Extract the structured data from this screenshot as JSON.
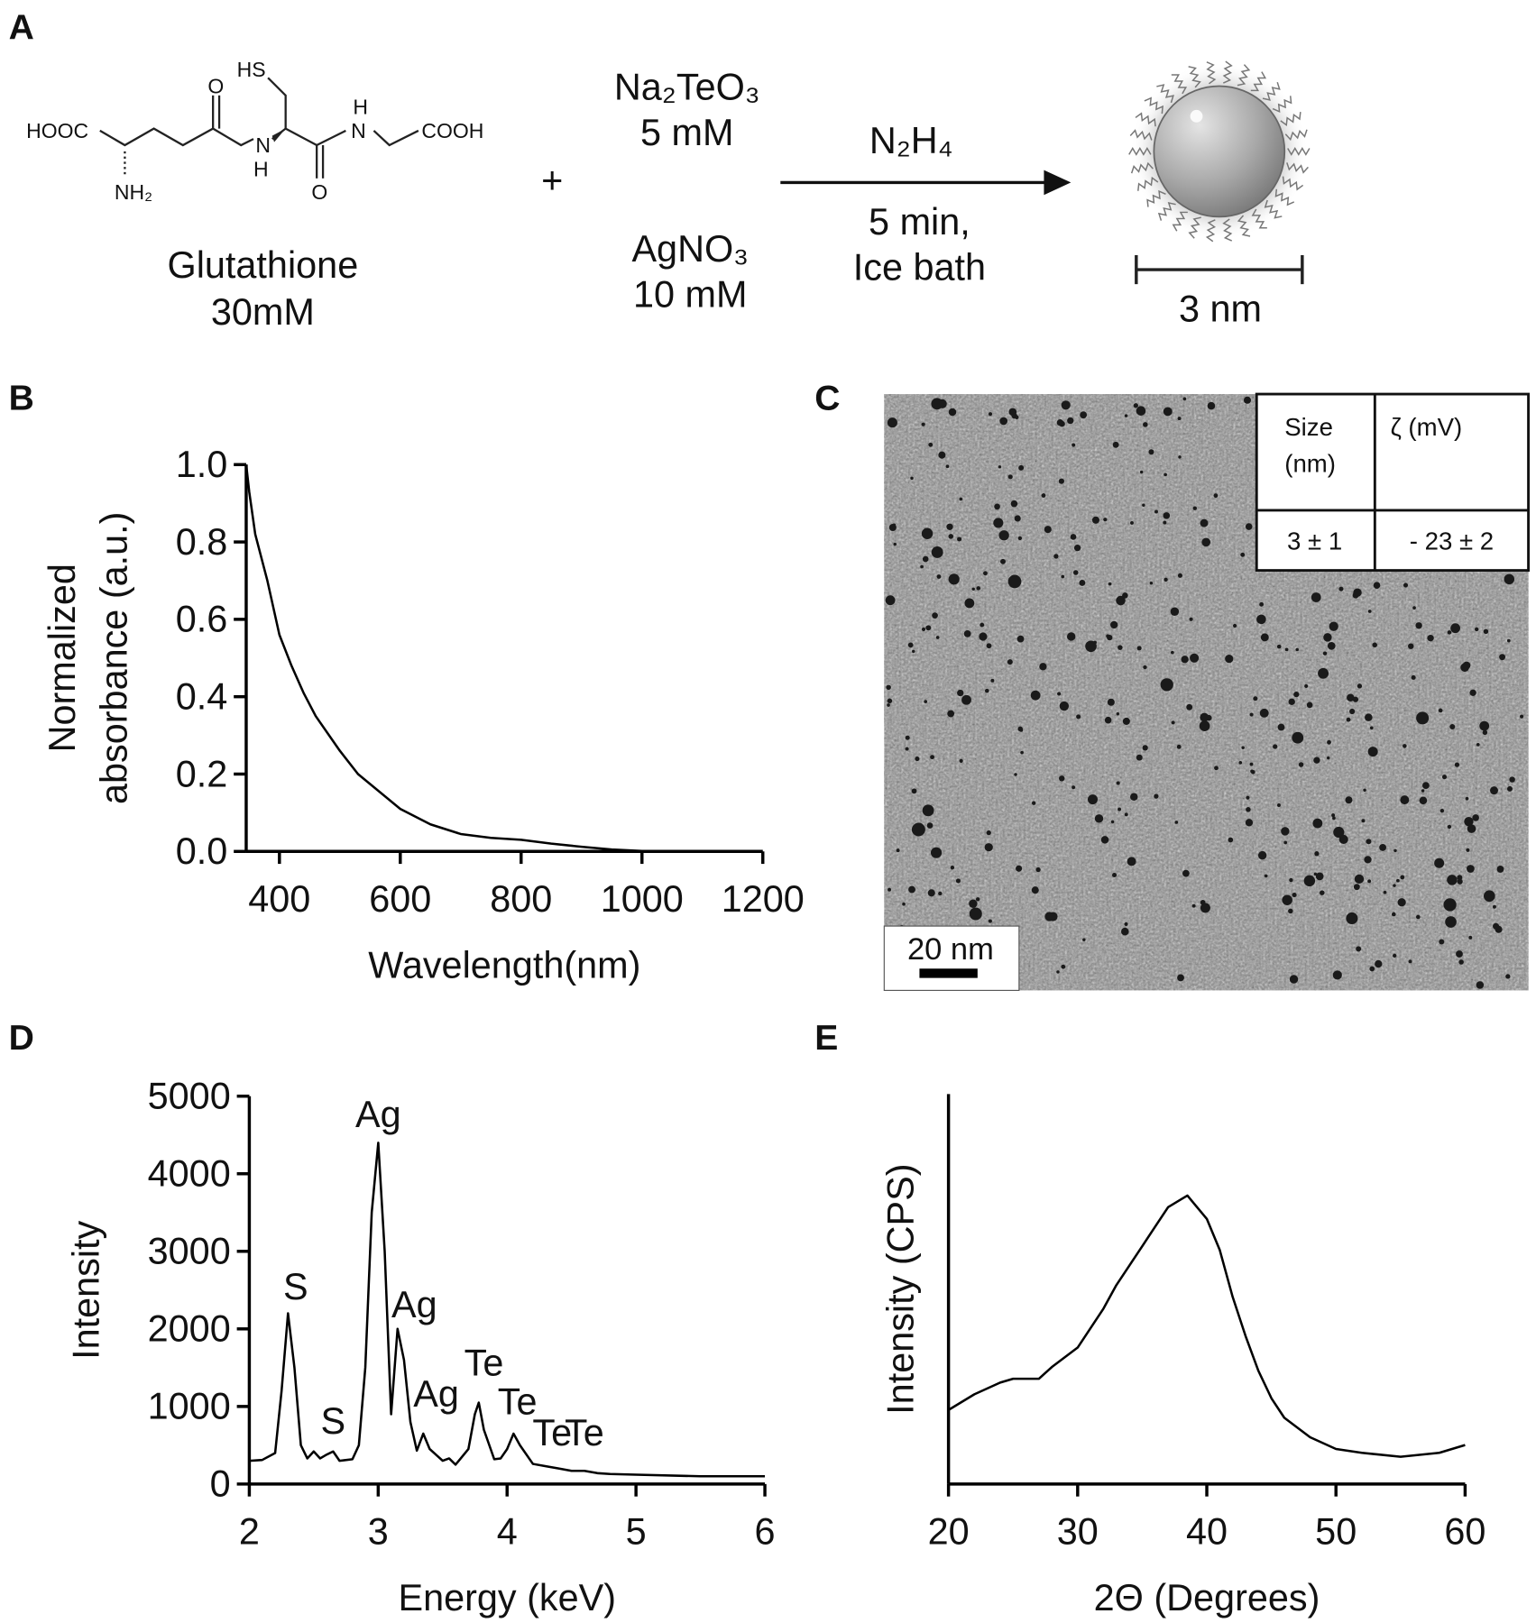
{
  "panel_labels": [
    "A",
    "B",
    "C",
    "D",
    "E"
  ],
  "panel_a": {
    "structure_labels": [
      "HOOC",
      "NH₂",
      "O",
      "N",
      "H",
      "HS",
      "O",
      "H",
      "N",
      "COOH"
    ],
    "reactant_name": "Glutathione",
    "reactant_conc": "30mM",
    "plus": "+",
    "salt1": "Na₂TeO₃",
    "salt1_conc": "5 mM",
    "salt2": "AgNO₃",
    "salt2_conc": "10 mM",
    "reagent": "N₂H₄",
    "conditions": [
      "5 min,",
      "Ice bath"
    ],
    "scale": "3 nm"
  },
  "panel_c": {
    "scale_bar": "20 nm",
    "table": {
      "header": [
        [
          "Size",
          "(nm)"
        ],
        [
          "ζ  (mV)"
        ]
      ],
      "rows": [
        [
          "3 ± 1",
          "- 23 ± 2"
        ]
      ]
    }
  },
  "chart_data": [
    {
      "type": "line",
      "xlabel": "Wavelength(nm)",
      "ylabel": [
        "Normalized",
        "absorbance (a.u.)"
      ],
      "color": "#000000",
      "x": [
        345,
        350,
        360,
        380,
        400,
        420,
        440,
        460,
        500,
        530,
        600,
        650,
        700,
        750,
        800,
        850,
        900,
        950,
        1000
      ],
      "values": [
        1.0,
        0.93,
        0.82,
        0.7,
        0.56,
        0.48,
        0.41,
        0.35,
        0.26,
        0.2,
        0.11,
        0.07,
        0.045,
        0.035,
        0.03,
        0.02,
        0.012,
        0.005,
        0.001
      ],
      "xlim": [
        345,
        1200
      ],
      "xticks": [
        400,
        600,
        800,
        1000,
        1200
      ],
      "ylim": [
        0,
        1
      ],
      "yticks": [
        {
          "value": 0,
          "label": "0.0"
        },
        0.2,
        0.4,
        0.6,
        0.8,
        {
          "value": 1,
          "label": "1.0"
        }
      ]
    },
    {
      "type": "line",
      "xlabel": "Energy (keV)",
      "ylabel": [
        "Intensity"
      ],
      "color": "#000000",
      "x": [
        2.0,
        2.1,
        2.2,
        2.25,
        2.3,
        2.35,
        2.4,
        2.45,
        2.5,
        2.55,
        2.6,
        2.65,
        2.7,
        2.8,
        2.85,
        2.9,
        2.95,
        3.0,
        3.05,
        3.1,
        3.15,
        3.2,
        3.25,
        3.3,
        3.35,
        3.4,
        3.5,
        3.55,
        3.6,
        3.7,
        3.75,
        3.78,
        3.82,
        3.9,
        3.95,
        4.0,
        4.05,
        4.1,
        4.2,
        4.3,
        4.4,
        4.5,
        4.6,
        4.7,
        4.8,
        5.0,
        5.5,
        6.0
      ],
      "values": [
        300,
        310,
        400,
        1200,
        2200,
        1500,
        500,
        330,
        420,
        330,
        380,
        420,
        300,
        320,
        500,
        1500,
        3500,
        4400,
        3000,
        900,
        2000,
        1600,
        800,
        430,
        650,
        450,
        300,
        330,
        250,
        450,
        900,
        1050,
        700,
        320,
        330,
        450,
        650,
        500,
        260,
        230,
        200,
        170,
        170,
        140,
        130,
        120,
        100,
        100
      ],
      "annotations": [
        "S",
        "S",
        "Ag",
        "Ag",
        "Ag",
        "Te",
        "Te",
        "Te",
        "Te"
      ],
      "xlim": [
        2,
        6
      ],
      "xticks": [
        2,
        3,
        4,
        5,
        6
      ],
      "ylim": [
        0,
        5000
      ],
      "yticks": [
        0,
        1000,
        2000,
        3000,
        4000,
        5000
      ]
    },
    {
      "type": "line",
      "xlabel": "2Θ (Degrees)",
      "ylabel": [
        "Intensity (CPS)"
      ],
      "color": "#000000",
      "x": [
        20,
        22,
        24,
        25,
        27,
        28,
        30,
        32,
        33,
        34,
        35,
        36,
        37,
        38,
        38.5,
        39,
        40,
        41,
        42,
        43,
        44,
        45,
        46,
        48,
        50,
        52,
        55,
        58,
        60
      ],
      "values": [
        19,
        23,
        26,
        27,
        27,
        30,
        35,
        45,
        51,
        56,
        61,
        66,
        71,
        73,
        74,
        72,
        68,
        60,
        48,
        38,
        29,
        22,
        17,
        12,
        9,
        8,
        7,
        8,
        10
      ],
      "xlim": [
        20,
        60
      ],
      "xticks": [
        20,
        30,
        40,
        50,
        60
      ],
      "ylim": [
        0,
        100
      ]
    }
  ]
}
